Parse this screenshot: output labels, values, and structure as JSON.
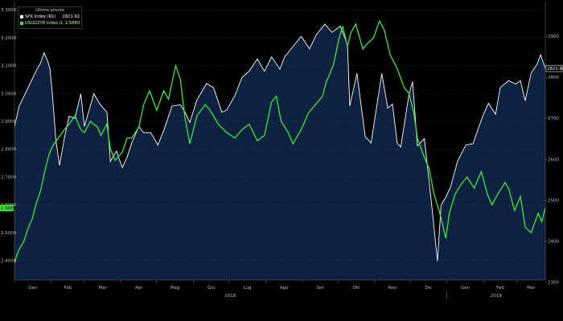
{
  "chart_data": {
    "type": "line",
    "legend": {
      "title": "Ultimo prezzo",
      "entries": [
        {
          "name": "SPX Index  (R1)",
          "value": "2821.92",
          "color": "#ffffff"
        },
        {
          "name": "USGG2YR Index  (L1)",
          "value": "2.5889",
          "color": "#39e83a"
        }
      ]
    },
    "x_axis": {
      "months": [
        "Gen",
        "Feb",
        "Mar",
        "Apr",
        "Mag",
        "Giu",
        "Lug",
        "Ago",
        "Set",
        "Ott",
        "Nov",
        "Dic",
        "Gen",
        "Feb",
        "Mar"
      ],
      "years": [
        "2018",
        "2019"
      ],
      "range": [
        "2018-01-01",
        "2019-03-25"
      ]
    },
    "left_axis": {
      "ticks": [
        "3.3000",
        "3.2000",
        "3.1000",
        "3.0000",
        "2.9000",
        "2.8000",
        "2.7000",
        "2.6000",
        "2.5000",
        "2.4000"
      ],
      "range": [
        2.33,
        3.33
      ],
      "last_label": "2.5889",
      "last_label_color": "#39e83a"
    },
    "right_axis": {
      "ticks": [
        "2900",
        "2800",
        "2700",
        "2600",
        "2500",
        "2400",
        "2300"
      ],
      "range": [
        2305,
        2985
      ],
      "last_label": "2821.92"
    },
    "series": [
      {
        "name": "SPX Index",
        "axis": "right",
        "color": "#ffffff",
        "fill": "#0d2240",
        "points": [
          [
            "2018-01-01",
            2680
          ],
          [
            "2018-01-05",
            2730
          ],
          [
            "2018-01-10",
            2760
          ],
          [
            "2018-01-15",
            2790
          ],
          [
            "2018-01-20",
            2820
          ],
          [
            "2018-01-23",
            2835
          ],
          [
            "2018-01-26",
            2860
          ],
          [
            "2018-01-29",
            2840
          ],
          [
            "2018-01-31",
            2820
          ],
          [
            "2018-02-02",
            2760
          ],
          [
            "2018-02-05",
            2645
          ],
          [
            "2018-02-08",
            2585
          ],
          [
            "2018-02-12",
            2650
          ],
          [
            "2018-02-16",
            2705
          ],
          [
            "2018-02-21",
            2700
          ],
          [
            "2018-02-26",
            2760
          ],
          [
            "2018-03-01",
            2680
          ],
          [
            "2018-03-05",
            2720
          ],
          [
            "2018-03-09",
            2760
          ],
          [
            "2018-03-14",
            2735
          ],
          [
            "2018-03-20",
            2715
          ],
          [
            "2018-03-23",
            2595
          ],
          [
            "2018-03-28",
            2620
          ],
          [
            "2018-04-02",
            2580
          ],
          [
            "2018-04-06",
            2605
          ],
          [
            "2018-04-10",
            2640
          ],
          [
            "2018-04-16",
            2680
          ],
          [
            "2018-04-20",
            2665
          ],
          [
            "2018-04-26",
            2665
          ],
          [
            "2018-05-02",
            2635
          ],
          [
            "2018-05-07",
            2670
          ],
          [
            "2018-05-14",
            2730
          ],
          [
            "2018-05-21",
            2733
          ],
          [
            "2018-05-25",
            2715
          ],
          [
            "2018-05-29",
            2690
          ],
          [
            "2018-06-04",
            2745
          ],
          [
            "2018-06-12",
            2785
          ],
          [
            "2018-06-18",
            2775
          ],
          [
            "2018-06-25",
            2715
          ],
          [
            "2018-06-29",
            2720
          ],
          [
            "2018-07-06",
            2755
          ],
          [
            "2018-07-12",
            2800
          ],
          [
            "2018-07-18",
            2815
          ],
          [
            "2018-07-25",
            2845
          ],
          [
            "2018-07-31",
            2815
          ],
          [
            "2018-08-06",
            2850
          ],
          [
            "2018-08-13",
            2820
          ],
          [
            "2018-08-17",
            2850
          ],
          [
            "2018-08-24",
            2875
          ],
          [
            "2018-08-31",
            2900
          ],
          [
            "2018-09-07",
            2870
          ],
          [
            "2018-09-13",
            2905
          ],
          [
            "2018-09-20",
            2930
          ],
          [
            "2018-09-26",
            2910
          ],
          [
            "2018-10-03",
            2925
          ],
          [
            "2018-10-09",
            2880
          ],
          [
            "2018-10-11",
            2730
          ],
          [
            "2018-10-17",
            2810
          ],
          [
            "2018-10-24",
            2655
          ],
          [
            "2018-10-29",
            2640
          ],
          [
            "2018-11-07",
            2810
          ],
          [
            "2018-11-12",
            2725
          ],
          [
            "2018-11-16",
            2735
          ],
          [
            "2018-11-20",
            2640
          ],
          [
            "2018-11-23",
            2630
          ],
          [
            "2018-11-30",
            2760
          ],
          [
            "2018-12-03",
            2790
          ],
          [
            "2018-12-07",
            2633
          ],
          [
            "2018-12-13",
            2650
          ],
          [
            "2018-12-17",
            2545
          ],
          [
            "2018-12-20",
            2465
          ],
          [
            "2018-12-24",
            2351
          ],
          [
            "2018-12-27",
            2488
          ],
          [
            "2018-12-31",
            2507
          ],
          [
            "2019-01-04",
            2532
          ],
          [
            "2019-01-10",
            2596
          ],
          [
            "2019-01-17",
            2635
          ],
          [
            "2019-01-23",
            2638
          ],
          [
            "2019-01-31",
            2704
          ],
          [
            "2019-02-05",
            2737
          ],
          [
            "2019-02-11",
            2710
          ],
          [
            "2019-02-15",
            2775
          ],
          [
            "2019-02-22",
            2792
          ],
          [
            "2019-02-28",
            2784
          ],
          [
            "2019-03-04",
            2792
          ],
          [
            "2019-03-08",
            2743
          ],
          [
            "2019-03-13",
            2810
          ],
          [
            "2019-03-18",
            2832
          ],
          [
            "2019-03-21",
            2855
          ],
          [
            "2019-03-25",
            2821.92
          ]
        ]
      },
      {
        "name": "USGG2YR Index",
        "axis": "left",
        "color": "#39e83a",
        "points": [
          [
            "2018-01-01",
            2.39
          ],
          [
            "2018-01-03",
            2.42
          ],
          [
            "2018-01-05",
            2.44
          ],
          [
            "2018-01-09",
            2.47
          ],
          [
            "2018-01-12",
            2.51
          ],
          [
            "2018-01-16",
            2.55
          ],
          [
            "2018-01-19",
            2.6
          ],
          [
            "2018-01-23",
            2.65
          ],
          [
            "2018-01-26",
            2.71
          ],
          [
            "2018-01-30",
            2.78
          ],
          [
            "2018-02-02",
            2.81
          ],
          [
            "2018-02-07",
            2.84
          ],
          [
            "2018-02-12",
            2.87
          ],
          [
            "2018-02-16",
            2.89
          ],
          [
            "2018-02-21",
            2.92
          ],
          [
            "2018-02-26",
            2.87
          ],
          [
            "2018-03-01",
            2.86
          ],
          [
            "2018-03-06",
            2.9
          ],
          [
            "2018-03-12",
            2.88
          ],
          [
            "2018-03-15",
            2.85
          ],
          [
            "2018-03-20",
            2.89
          ],
          [
            "2018-03-23",
            2.8
          ],
          [
            "2018-03-27",
            2.76
          ],
          [
            "2018-04-02",
            2.79
          ],
          [
            "2018-04-06",
            2.84
          ],
          [
            "2018-04-10",
            2.84
          ],
          [
            "2018-04-16",
            2.88
          ],
          [
            "2018-04-20",
            2.96
          ],
          [
            "2018-04-25",
            3.01
          ],
          [
            "2018-05-01",
            2.94
          ],
          [
            "2018-05-07",
            3.01
          ],
          [
            "2018-05-11",
            2.98
          ],
          [
            "2018-05-15",
            3.06
          ],
          [
            "2018-05-17",
            3.1
          ],
          [
            "2018-05-21",
            3.05
          ],
          [
            "2018-05-25",
            2.91
          ],
          [
            "2018-05-29",
            2.82
          ],
          [
            "2018-06-04",
            2.92
          ],
          [
            "2018-06-11",
            2.96
          ],
          [
            "2018-06-15",
            2.94
          ],
          [
            "2018-06-22",
            2.89
          ],
          [
            "2018-06-29",
            2.86
          ],
          [
            "2018-07-06",
            2.84
          ],
          [
            "2018-07-12",
            2.87
          ],
          [
            "2018-07-18",
            2.89
          ],
          [
            "2018-07-25",
            2.83
          ],
          [
            "2018-07-31",
            2.85
          ],
          [
            "2018-08-06",
            2.97
          ],
          [
            "2018-08-10",
            2.99
          ],
          [
            "2018-08-14",
            2.9
          ],
          [
            "2018-08-20",
            2.86
          ],
          [
            "2018-08-24",
            2.82
          ],
          [
            "2018-08-31",
            2.87
          ],
          [
            "2018-09-06",
            2.93
          ],
          [
            "2018-09-12",
            2.96
          ],
          [
            "2018-09-18",
            2.99
          ],
          [
            "2018-09-21",
            3.04
          ],
          [
            "2018-09-27",
            3.1
          ],
          [
            "2018-10-02",
            3.2
          ],
          [
            "2018-10-05",
            3.24
          ],
          [
            "2018-10-09",
            3.17
          ],
          [
            "2018-10-12",
            3.22
          ],
          [
            "2018-10-16",
            3.25
          ],
          [
            "2018-10-22",
            3.16
          ],
          [
            "2018-10-26",
            3.18
          ],
          [
            "2018-10-31",
            3.2
          ],
          [
            "2018-11-05",
            3.26
          ],
          [
            "2018-11-09",
            3.23
          ],
          [
            "2018-11-14",
            3.14
          ],
          [
            "2018-11-20",
            3.09
          ],
          [
            "2018-11-26",
            3.02
          ],
          [
            "2018-11-30",
            3.0
          ],
          [
            "2018-12-04",
            2.93
          ],
          [
            "2018-12-07",
            2.84
          ],
          [
            "2018-12-12",
            2.78
          ],
          [
            "2018-12-17",
            2.73
          ],
          [
            "2018-12-21",
            2.64
          ],
          [
            "2018-12-26",
            2.57
          ],
          [
            "2018-12-31",
            2.48
          ],
          [
            "2019-01-03",
            2.57
          ],
          [
            "2019-01-08",
            2.64
          ],
          [
            "2019-01-14",
            2.68
          ],
          [
            "2019-01-18",
            2.7
          ],
          [
            "2019-01-24",
            2.66
          ],
          [
            "2019-01-30",
            2.72
          ],
          [
            "2019-02-04",
            2.64
          ],
          [
            "2019-02-08",
            2.6
          ],
          [
            "2019-02-13",
            2.64
          ],
          [
            "2019-02-19",
            2.68
          ],
          [
            "2019-02-22",
            2.66
          ],
          [
            "2019-02-27",
            2.58
          ],
          [
            "2019-03-04",
            2.63
          ],
          [
            "2019-03-08",
            2.52
          ],
          [
            "2019-03-13",
            2.5
          ],
          [
            "2019-03-19",
            2.57
          ],
          [
            "2019-03-22",
            2.54
          ],
          [
            "2019-03-25",
            2.5889
          ]
        ]
      }
    ]
  }
}
